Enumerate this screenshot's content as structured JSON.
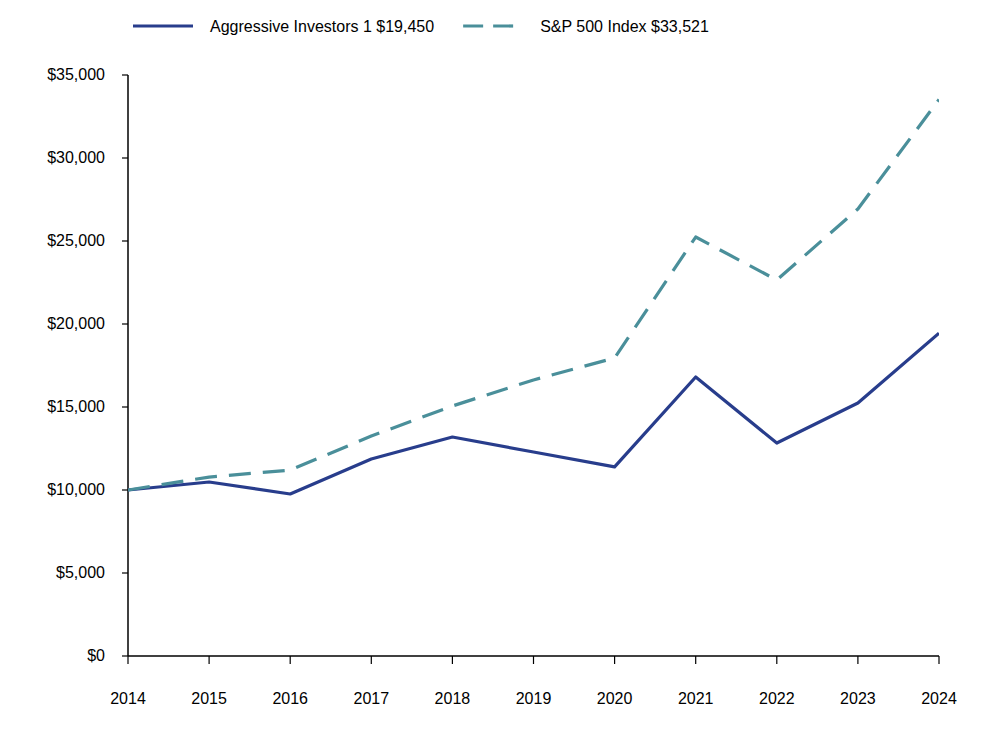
{
  "chart_data": {
    "type": "line",
    "x": [
      2014,
      2015,
      2016,
      2017,
      2018,
      2019,
      2020,
      2021,
      2022,
      2023,
      2024
    ],
    "xlim": [
      2014,
      2024
    ],
    "xticks": [
      2014,
      2015,
      2016,
      2017,
      2018,
      2019,
      2020,
      2021,
      2022,
      2023,
      2024
    ],
    "ylim": [
      0,
      35000
    ],
    "yticks": [
      {
        "value": 0,
        "label": "$0"
      },
      {
        "value": 5000,
        "label": "$5,000"
      },
      {
        "value": 10000,
        "label": "$10,000"
      },
      {
        "value": 15000,
        "label": "$15,000"
      },
      {
        "value": 20000,
        "label": "$20,000"
      },
      {
        "value": 25000,
        "label": "$25,000"
      },
      {
        "value": 30000,
        "label": "$30,000"
      },
      {
        "value": 35000,
        "label": "$35,000"
      }
    ],
    "grid": false,
    "legend": "top",
    "series": [
      {
        "name": "Aggressive Investors 1 $19,450",
        "color": "#283d8c",
        "line_style": "solid",
        "values": [
          10000,
          10480,
          9760,
          11870,
          13190,
          12290,
          11390,
          16810,
          12830,
          15240,
          19450
        ]
      },
      {
        "name": "S&P 500 Index $33,521",
        "color": "#4a8f9a",
        "line_style": "dashed",
        "values": [
          10000,
          10780,
          11200,
          13250,
          15060,
          16630,
          17950,
          25240,
          22650,
          26930,
          33521
        ]
      }
    ]
  }
}
